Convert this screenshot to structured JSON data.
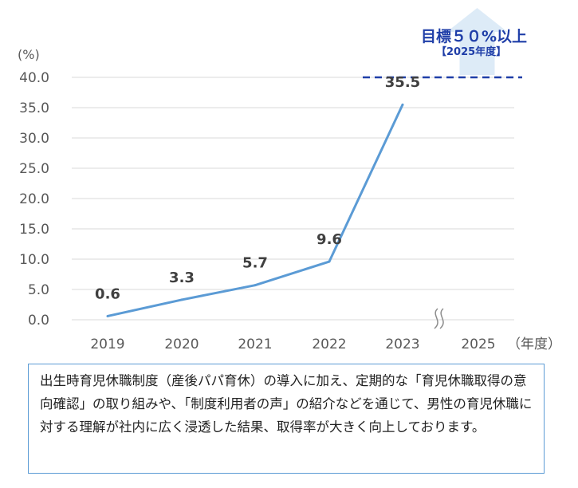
{
  "chart_data": {
    "type": "line",
    "y_unit_label": "(%)",
    "x_unit_label": "（年度）",
    "categories": [
      "2019",
      "2020",
      "2021",
      "2022",
      "2023",
      "2025"
    ],
    "yticks": [
      "40.0",
      "35.0",
      "30.0",
      "25.0",
      "20.0",
      "15.0",
      "10.0",
      "5.0",
      "0.0"
    ],
    "ylim": [
      0,
      40
    ],
    "series": [
      {
        "x": [
          "2019",
          "2020",
          "2021",
          "2022",
          "2023"
        ],
        "values": [
          0.6,
          3.3,
          5.7,
          9.6,
          35.5
        ],
        "labels": [
          "0.6",
          "3.3",
          "5.7",
          "9.6",
          "35.5"
        ],
        "color": "#5b9bd5"
      }
    ],
    "target": {
      "label": "目標５０%以上",
      "sublabel": "【2025年度】",
      "year": "2025",
      "line_color": "#1f3ea8",
      "arrow_color": "#ddebf7"
    },
    "axis_break": true,
    "grid": true
  },
  "note": {
    "text": "出生時育児休職制度（産後パパ育休）の導入に加え、定期的な「育児休職取得の意向確認」の取り組みや、「制度利用者の声」の紹介などを通じて、男性の育児休職に対する理解が社内に広く浸透した結果、取得率が大きく向上しております。"
  }
}
